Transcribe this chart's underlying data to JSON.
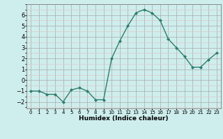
{
  "x": [
    0,
    1,
    2,
    3,
    4,
    5,
    6,
    7,
    8,
    9,
    10,
    11,
    12,
    13,
    14,
    15,
    16,
    17,
    18,
    19,
    20,
    21,
    22,
    23
  ],
  "y": [
    -1,
    -1,
    -1.3,
    -1.3,
    -2,
    -0.9,
    -0.7,
    -1,
    -1.8,
    -1.8,
    2,
    3.6,
    5,
    6.2,
    6.5,
    6.2,
    5.5,
    3.8,
    3,
    2.2,
    1.2,
    1.2,
    1.9,
    2.5
  ],
  "line_color": "#2e7d6e",
  "marker": "D",
  "marker_size": 2.0,
  "line_width": 1.0,
  "bg_color": "#ceeeed",
  "grid_color_major": "#aaaaaa",
  "grid_color_minor": "#ddc8c8",
  "xlabel": "Humidex (Indice chaleur)",
  "ylim": [
    -2.6,
    7.0
  ],
  "xlim": [
    -0.5,
    23.5
  ],
  "yticks": [
    -2,
    -1,
    0,
    1,
    2,
    3,
    4,
    5,
    6
  ],
  "xtick_labels": [
    "0",
    "1",
    "2",
    "3",
    "4",
    "5",
    "6",
    "7",
    "8",
    "9",
    "10",
    "11",
    "12",
    "13",
    "14",
    "15",
    "16",
    "17",
    "18",
    "19",
    "20",
    "21",
    "22",
    "23"
  ],
  "xlabel_fontsize": 6.5,
  "ytick_fontsize": 6,
  "xtick_fontsize": 5
}
